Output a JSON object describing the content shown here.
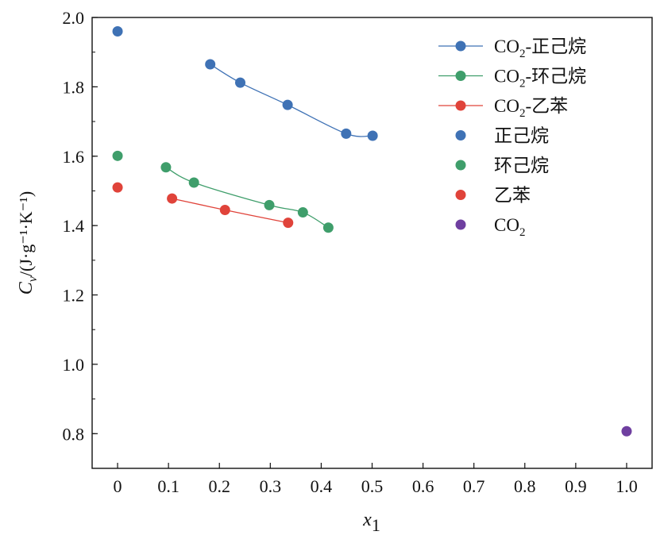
{
  "chart_data": {
    "type": "scatter",
    "xlabel": "x",
    "xlabel_sub": "1",
    "ylabel_symbol": "C",
    "ylabel_sub": "v",
    "ylabel_unit": "/(J·g⁻¹·K⁻¹)",
    "xlim": [
      -0.05,
      1.05
    ],
    "ylim": [
      0.7,
      2.0
    ],
    "xticks": [
      0,
      0.1,
      0.2,
      0.3,
      0.4,
      0.5,
      0.6,
      0.7,
      0.8,
      0.9,
      1.0
    ],
    "xtick_labels": [
      "0",
      "0.1",
      "0.2",
      "0.3",
      "0.4",
      "0.5",
      "0.6",
      "0.7",
      "0.8",
      "0.9",
      "1.0"
    ],
    "yticks": [
      0.8,
      1.0,
      1.2,
      1.4,
      1.6,
      1.8,
      2.0
    ],
    "ytick_labels": [
      "0.8",
      "1.0",
      "1.2",
      "1.4",
      "1.6",
      "1.8",
      "2.0"
    ],
    "legend_position": "top-right",
    "series": [
      {
        "name": "CO₂-正己烷",
        "name_prefix": "CO",
        "name_sub": "2",
        "name_suffix": "-正己烷",
        "kind": "line+marker",
        "color": "#3f72b5",
        "x": [
          0.182,
          0.241,
          0.334,
          0.449,
          0.501
        ],
        "y": [
          1.865,
          1.812,
          1.748,
          1.665,
          1.659
        ]
      },
      {
        "name": "CO₂-环己烷",
        "name_prefix": "CO",
        "name_sub": "2",
        "name_suffix": "-环己烷",
        "kind": "line+marker",
        "color": "#3f9e6b",
        "x": [
          0.095,
          0.15,
          0.298,
          0.364,
          0.414
        ],
        "y": [
          1.568,
          1.524,
          1.459,
          1.438,
          1.394
        ]
      },
      {
        "name": "CO₂-乙苯",
        "name_prefix": "CO",
        "name_sub": "2",
        "name_suffix": "-乙苯",
        "kind": "line+marker",
        "color": "#e0433a",
        "x": [
          0.107,
          0.211,
          0.335
        ],
        "y": [
          1.478,
          1.445,
          1.408
        ]
      },
      {
        "name": "正己烷",
        "name_prefix": "正己烷",
        "name_sub": "",
        "name_suffix": "",
        "kind": "marker",
        "color": "#3f72b5",
        "x": [
          0
        ],
        "y": [
          1.96
        ]
      },
      {
        "name": "环己烷",
        "name_prefix": "环己烷",
        "name_sub": "",
        "name_suffix": "",
        "kind": "marker",
        "color": "#3f9e6b",
        "x": [
          0
        ],
        "y": [
          1.601
        ]
      },
      {
        "name": "乙苯",
        "name_prefix": "乙苯",
        "name_sub": "",
        "name_suffix": "",
        "kind": "marker",
        "color": "#e0433a",
        "x": [
          0
        ],
        "y": [
          1.51
        ]
      },
      {
        "name": "CO₂",
        "name_prefix": "CO",
        "name_sub": "2",
        "name_suffix": "",
        "kind": "marker",
        "color": "#6f3fa0",
        "x": [
          1.0
        ],
        "y": [
          0.807
        ]
      }
    ]
  }
}
